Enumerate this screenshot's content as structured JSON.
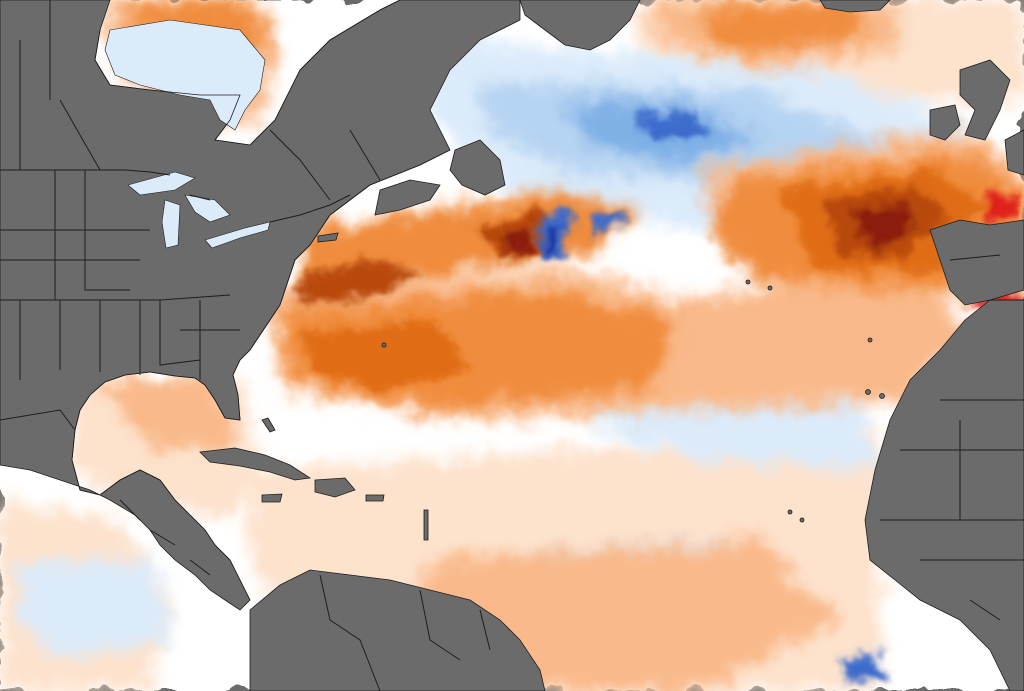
{
  "map": {
    "type": "sea-surface-temperature-anomaly",
    "region": "North Atlantic",
    "colors": {
      "land": "#6b6b6b",
      "border": "#1e1e1e",
      "ocean_neutral": "#ffffff",
      "warm_1": "#fde2cc",
      "warm_2": "#f9b98a",
      "warm_3": "#f08c3c",
      "warm_4": "#e06d14",
      "warm_5": "#b8480e",
      "warm_6": "#8c1a0a",
      "warm_7": "#e0201a",
      "cool_1": "#dcebfa",
      "cool_2": "#b5d3f2",
      "cool_3": "#7fb0e6",
      "cool_4": "#3c6ccc",
      "cool_5": "#1a2fa0"
    },
    "text_labels": []
  }
}
